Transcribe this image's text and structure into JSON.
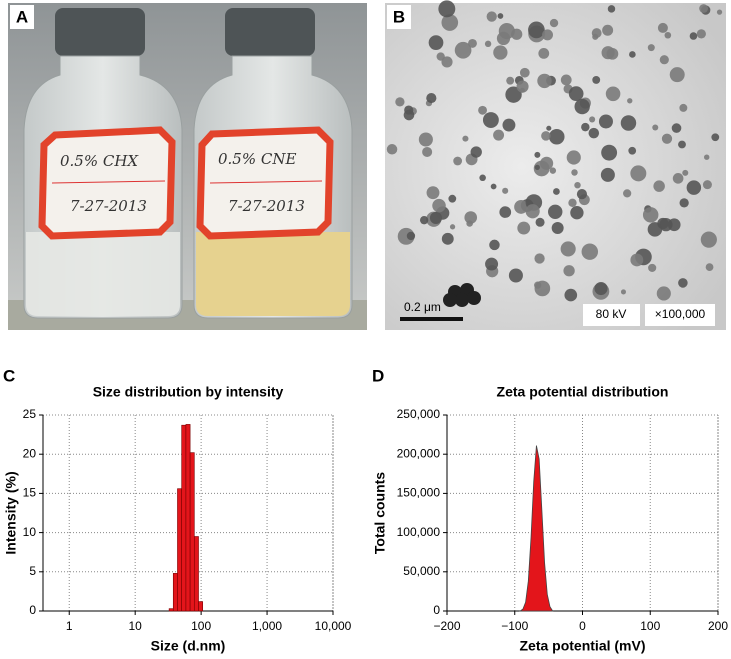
{
  "panel_a": {
    "letter": "A",
    "labels": [
      [
        "0.5% CHX",
        "7-27-2013"
      ],
      [
        "0.5% CNE",
        "7-27-2013"
      ]
    ]
  },
  "panel_b": {
    "letter": "B",
    "scale_bar": "0.2 μm",
    "voltage": "80 kV",
    "magnification": "×100,000"
  },
  "chart_data": [
    {
      "type": "histogram",
      "panel_label": "C",
      "title": "Size distribution by intensity",
      "x_label": "Size (d.nm)",
      "y_label": "Intensity (%)",
      "xscale": "log",
      "bins": [
        32.7,
        37.8,
        43.8,
        50.7,
        58.8,
        68.1,
        78.8,
        91.3,
        105.7
      ],
      "values": [
        0.3,
        4.8,
        15.6,
        23.7,
        23.8,
        20.2,
        9.5,
        1.2
      ],
      "color": "#e3151b",
      "grid": true,
      "xlim": [
        0.4,
        10000
      ],
      "xticks": [
        1,
        10,
        100,
        {
          "value": 1000,
          "label": "1,000"
        },
        {
          "value": 10000,
          "label": "10,000"
        }
      ],
      "ylim": [
        0,
        25
      ],
      "yticks": [
        0,
        5,
        10,
        15,
        20,
        25
      ]
    },
    {
      "type": "area",
      "panel_label": "D",
      "title": "Zeta potential distribution",
      "x_label": "Zeta potential (mV)",
      "y_label": "Total counts",
      "x": [
        -92,
        -88,
        -84,
        -80,
        -76,
        -72,
        -68,
        -64,
        -60,
        -56,
        -52,
        -48,
        -44
      ],
      "values": [
        0,
        2400,
        11100,
        38000,
        93300,
        165000,
        211000,
        194000,
        129000,
        62000,
        21300,
        5400,
        0
      ],
      "color": "#e3151b",
      "grid": true,
      "xlim": [
        -200,
        200
      ],
      "xticks": [
        {
          "value": -200,
          "label": "−200"
        },
        {
          "value": -100,
          "label": "−100"
        },
        0,
        100,
        200
      ],
      "ylim": [
        0,
        250000
      ],
      "yticks": [
        0,
        {
          "value": 50000,
          "label": "50,000"
        },
        {
          "value": 100000,
          "label": "100,000"
        },
        {
          "value": 150000,
          "label": "150,000"
        },
        {
          "value": 200000,
          "label": "200,000"
        },
        {
          "value": 250000,
          "label": "250,000"
        }
      ]
    }
  ]
}
